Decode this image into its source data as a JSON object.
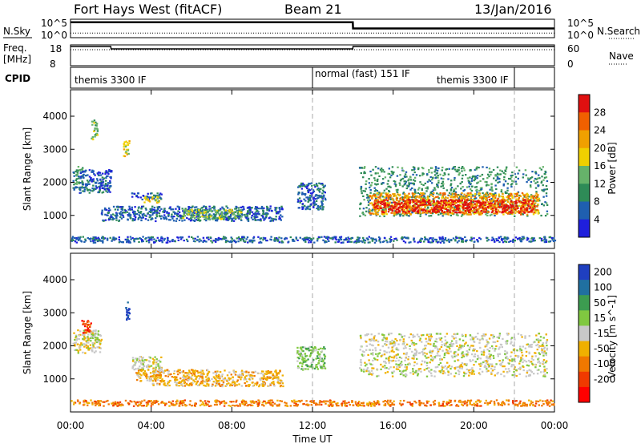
{
  "header": {
    "station": "Fort Hays West (fitACF)",
    "beam": "Beam 21",
    "date": "13/Jan/2016"
  },
  "top_panels": {
    "nsky_label": "N.Sky",
    "nsky_ticks": [
      "10^5",
      "10^0"
    ],
    "nsearch_label": "N.Search",
    "nsearch_ticks": [
      "10^5",
      "10^0"
    ],
    "freq_label": "Freq.",
    "freq_unit": "[MHz]",
    "freq_ticks": [
      "18",
      "8"
    ],
    "nave_label": "Nave",
    "nave_ticks": [
      "60",
      "0"
    ],
    "cpid_label": "CPID",
    "cpid_segments": [
      {
        "label": "themis 3300 IF",
        "start_h": 0,
        "end_h": 12
      },
      {
        "label": "normal (fast) 151 IF",
        "start_h": 12,
        "end_h": 22
      },
      {
        "label": "themis 3300 IF",
        "start_h": 14.5,
        "end_h": 22
      }
    ]
  },
  "x_axis": {
    "label": "Time UT",
    "ticks": [
      "00:00",
      "04:00",
      "08:00",
      "12:00",
      "16:00",
      "20:00",
      "00:00"
    ]
  },
  "colors": {
    "power": [
      "#1f1fdc",
      "#1f5fb0",
      "#2e8b57",
      "#66b36a",
      "#f0d000",
      "#f0a000",
      "#f06000",
      "#e01010"
    ],
    "velocity": [
      "#ff0000",
      "#f03a00",
      "#f07800",
      "#f0b000",
      "#c8c8c8",
      "#80c840",
      "#3c9c50",
      "#2070a0",
      "#1f3fc0"
    ]
  },
  "chart_data": [
    {
      "type": "line",
      "title": "Fort Hays West (fitACF)",
      "xlabel": "",
      "ylabel": "N.Sky",
      "series": [
        {
          "name": "N.Sky",
          "x": [
            0,
            2,
            4,
            6,
            8,
            10,
            12,
            14,
            14.01,
            16,
            18,
            20,
            22,
            24
          ],
          "values": [
            10,
            10,
            10,
            10,
            10,
            10,
            10,
            10,
            6,
            6,
            6,
            6,
            6,
            6
          ]
        },
        {
          "name": "N.Search",
          "x": [
            0,
            24
          ],
          "values": [
            3,
            3
          ]
        }
      ]
    },
    {
      "type": "line",
      "ylabel": "Freq. [MHz]",
      "series": [
        {
          "name": "Freq.",
          "x": [
            0,
            2,
            2.01,
            14,
            14.01,
            24
          ],
          "values": [
            12,
            12,
            10.5,
            10.5,
            12,
            12
          ]
        },
        {
          "name": "Nave",
          "x": [
            0,
            24
          ],
          "values": [
            10,
            10
          ]
        }
      ]
    },
    {
      "type": "heatmap",
      "ylabel": "Slant Range [km]",
      "xlabel": "",
      "yticks": [
        "1000",
        "2000",
        "3000",
        "4000"
      ],
      "ylim": [
        0,
        4800
      ],
      "xlim": [
        0,
        24
      ],
      "colorbar_label": "Power [dB]",
      "colorbar_ticks": [
        "4",
        "8",
        "12",
        "16",
        "20",
        "24",
        "28"
      ],
      "regions": [
        {
          "x": [
            0.1,
            0.6
          ],
          "y": [
            1800,
            2500
          ],
          "level": 2
        },
        {
          "x": [
            0.4,
            2.0
          ],
          "y": [
            1700,
            2400
          ],
          "level": 1
        },
        {
          "x": [
            1.0,
            1.3
          ],
          "y": [
            3300,
            3900
          ],
          "level": 3
        },
        {
          "x": [
            2.6,
            2.9
          ],
          "y": [
            2800,
            3300
          ],
          "level": 4
        },
        {
          "x": [
            3.0,
            4.5
          ],
          "y": [
            1500,
            1700
          ],
          "level": 1
        },
        {
          "x": [
            3.6,
            4.4
          ],
          "y": [
            1400,
            1600
          ],
          "level": 4
        },
        {
          "x": [
            1.5,
            10.5
          ],
          "y": [
            850,
            1300
          ],
          "level": 1
        },
        {
          "x": [
            5.5,
            8.5
          ],
          "y": [
            900,
            1200
          ],
          "level": 3
        },
        {
          "x": [
            11.2,
            12.6
          ],
          "y": [
            1200,
            2000
          ],
          "level": 1
        },
        {
          "x": [
            14.3,
            23.6
          ],
          "y": [
            1000,
            2500
          ],
          "level": 2
        },
        {
          "x": [
            14.8,
            23.2
          ],
          "y": [
            1050,
            1700
          ],
          "level": 5
        },
        {
          "x": [
            15.0,
            23.0
          ],
          "y": [
            1100,
            1500
          ],
          "level": 7
        },
        {
          "x": [
            0,
            24
          ],
          "y": [
            200,
            380
          ],
          "level": 1
        }
      ]
    },
    {
      "type": "heatmap",
      "ylabel": "Slant Range [km]",
      "xlabel": "Time UT",
      "yticks": [
        "1000",
        "2000",
        "3000",
        "4000"
      ],
      "ylim": [
        0,
        4800
      ],
      "xlim": [
        0,
        24
      ],
      "colorbar_label": "Velocity [m s^-1]",
      "colorbar_ticks": [
        "200",
        "100",
        "50",
        "15",
        "-15",
        "-50",
        "-100",
        "-200"
      ],
      "regions": [
        {
          "x": [
            0.1,
            1.5
          ],
          "y": [
            1800,
            2500
          ],
          "level": 4
        },
        {
          "x": [
            0.5,
            1.0
          ],
          "y": [
            2400,
            2800
          ],
          "level": 1
        },
        {
          "x": [
            2.7,
            2.9
          ],
          "y": [
            2800,
            3400
          ],
          "level": 8
        },
        {
          "x": [
            3.0,
            4.5
          ],
          "y": [
            1300,
            1700
          ],
          "level": 4
        },
        {
          "x": [
            3.2,
            4.2
          ],
          "y": [
            950,
            1300
          ],
          "level": 3
        },
        {
          "x": [
            4.0,
            10.5
          ],
          "y": [
            800,
            1300
          ],
          "level": 3
        },
        {
          "x": [
            11.2,
            12.6
          ],
          "y": [
            1300,
            2000
          ],
          "level": 5
        },
        {
          "x": [
            14.3,
            23.6
          ],
          "y": [
            1100,
            2400
          ],
          "level": 4
        },
        {
          "x": [
            0,
            24
          ],
          "y": [
            200,
            380
          ],
          "level": 2
        }
      ]
    }
  ]
}
